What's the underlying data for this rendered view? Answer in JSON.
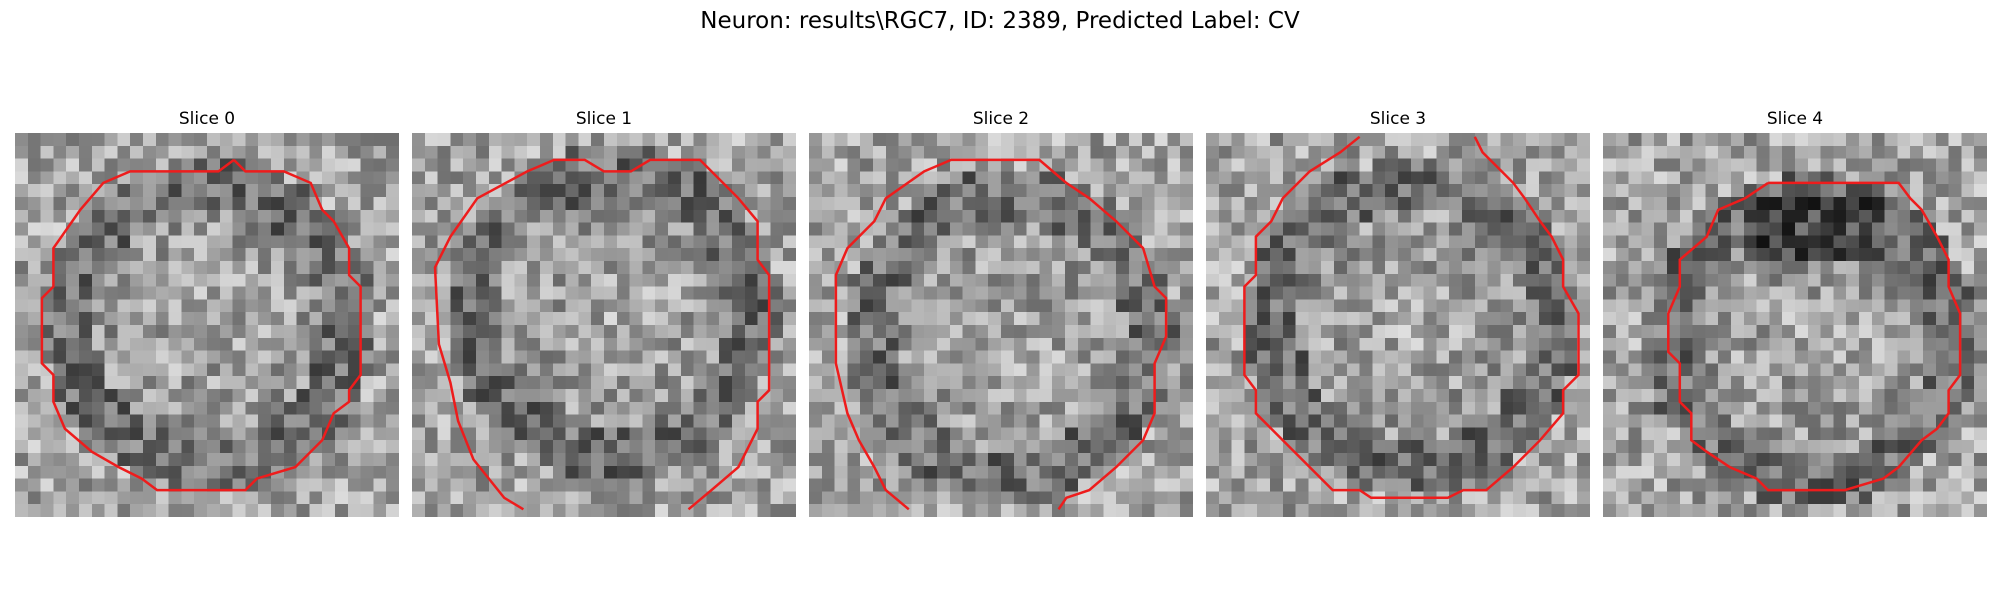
{
  "figure": {
    "title": "Neuron: results\\RGC7, ID: 2389, Predicted Label: CV"
  },
  "slices": [
    {
      "title": "Slice 0",
      "contour": [
        [
          0.57,
          0.07
        ],
        [
          0.6,
          0.1
        ],
        [
          0.7,
          0.1
        ],
        [
          0.77,
          0.13
        ],
        [
          0.8,
          0.2
        ],
        [
          0.83,
          0.23
        ],
        [
          0.87,
          0.3
        ],
        [
          0.87,
          0.37
        ],
        [
          0.9,
          0.4
        ],
        [
          0.9,
          0.63
        ],
        [
          0.87,
          0.67
        ],
        [
          0.87,
          0.7
        ],
        [
          0.83,
          0.73
        ],
        [
          0.8,
          0.8
        ],
        [
          0.73,
          0.87
        ],
        [
          0.63,
          0.9
        ],
        [
          0.6,
          0.93
        ],
        [
          0.37,
          0.93
        ],
        [
          0.33,
          0.9
        ],
        [
          0.27,
          0.87
        ],
        [
          0.2,
          0.83
        ],
        [
          0.13,
          0.77
        ],
        [
          0.1,
          0.7
        ],
        [
          0.1,
          0.63
        ],
        [
          0.07,
          0.6
        ],
        [
          0.07,
          0.43
        ],
        [
          0.1,
          0.4
        ],
        [
          0.1,
          0.3
        ],
        [
          0.17,
          0.2
        ],
        [
          0.23,
          0.13
        ],
        [
          0.3,
          0.1
        ],
        [
          0.53,
          0.1
        ]
      ]
    },
    {
      "title": "Slice 1",
      "contour": [
        [
          0.29,
          0.98
        ],
        [
          0.24,
          0.95
        ],
        [
          0.16,
          0.85
        ],
        [
          0.12,
          0.75
        ],
        [
          0.1,
          0.65
        ],
        [
          0.07,
          0.55
        ],
        [
          0.06,
          0.35
        ],
        [
          0.1,
          0.27
        ],
        [
          0.17,
          0.17
        ],
        [
          0.3,
          0.1
        ],
        [
          0.37,
          0.07
        ],
        [
          0.45,
          0.07
        ],
        [
          0.5,
          0.1
        ],
        [
          0.57,
          0.1
        ],
        [
          0.62,
          0.07
        ],
        [
          0.75,
          0.07
        ],
        [
          0.85,
          0.17
        ],
        [
          0.9,
          0.23
        ],
        [
          0.9,
          0.33
        ],
        [
          0.93,
          0.37
        ],
        [
          0.93,
          0.67
        ],
        [
          0.9,
          0.7
        ],
        [
          0.9,
          0.77
        ],
        [
          0.85,
          0.87
        ],
        [
          0.78,
          0.93
        ],
        [
          0.72,
          0.98
        ]
      ]
    },
    {
      "title": "Slice 2",
      "contour": [
        [
          0.26,
          0.98
        ],
        [
          0.2,
          0.93
        ],
        [
          0.17,
          0.87
        ],
        [
          0.13,
          0.8
        ],
        [
          0.1,
          0.73
        ],
        [
          0.07,
          0.6
        ],
        [
          0.07,
          0.37
        ],
        [
          0.1,
          0.3
        ],
        [
          0.17,
          0.23
        ],
        [
          0.2,
          0.17
        ],
        [
          0.3,
          0.1
        ],
        [
          0.37,
          0.07
        ],
        [
          0.6,
          0.07
        ],
        [
          0.67,
          0.13
        ],
        [
          0.73,
          0.17
        ],
        [
          0.8,
          0.23
        ],
        [
          0.87,
          0.3
        ],
        [
          0.9,
          0.4
        ],
        [
          0.93,
          0.43
        ],
        [
          0.93,
          0.53
        ],
        [
          0.9,
          0.6
        ],
        [
          0.9,
          0.73
        ],
        [
          0.87,
          0.8
        ],
        [
          0.8,
          0.87
        ],
        [
          0.73,
          0.93
        ],
        [
          0.67,
          0.95
        ],
        [
          0.65,
          0.98
        ]
      ]
    },
    {
      "title": "Slice 3",
      "contour": [
        [
          0.4,
          0.01
        ],
        [
          0.35,
          0.05
        ],
        [
          0.27,
          0.1
        ],
        [
          0.2,
          0.17
        ],
        [
          0.17,
          0.23
        ],
        [
          0.13,
          0.27
        ],
        [
          0.13,
          0.37
        ],
        [
          0.1,
          0.4
        ],
        [
          0.1,
          0.63
        ],
        [
          0.13,
          0.67
        ],
        [
          0.13,
          0.73
        ],
        [
          0.17,
          0.77
        ],
        [
          0.23,
          0.83
        ],
        [
          0.3,
          0.9
        ],
        [
          0.33,
          0.93
        ],
        [
          0.4,
          0.93
        ],
        [
          0.43,
          0.95
        ],
        [
          0.63,
          0.95
        ],
        [
          0.67,
          0.93
        ],
        [
          0.73,
          0.93
        ],
        [
          0.8,
          0.87
        ],
        [
          0.87,
          0.8
        ],
        [
          0.93,
          0.73
        ],
        [
          0.93,
          0.67
        ],
        [
          0.97,
          0.63
        ],
        [
          0.97,
          0.47
        ],
        [
          0.93,
          0.4
        ],
        [
          0.93,
          0.33
        ],
        [
          0.9,
          0.27
        ],
        [
          0.87,
          0.23
        ],
        [
          0.83,
          0.17
        ],
        [
          0.8,
          0.13
        ],
        [
          0.77,
          0.1
        ],
        [
          0.72,
          0.05
        ],
        [
          0.7,
          0.01
        ]
      ]
    },
    {
      "title": "Slice 4",
      "contour": [
        [
          0.43,
          0.13
        ],
        [
          0.5,
          0.13
        ],
        [
          0.77,
          0.13
        ],
        [
          0.8,
          0.17
        ],
        [
          0.83,
          0.2
        ],
        [
          0.87,
          0.27
        ],
        [
          0.9,
          0.33
        ],
        [
          0.9,
          0.4
        ],
        [
          0.93,
          0.47
        ],
        [
          0.93,
          0.63
        ],
        [
          0.9,
          0.67
        ],
        [
          0.9,
          0.73
        ],
        [
          0.87,
          0.77
        ],
        [
          0.83,
          0.8
        ],
        [
          0.77,
          0.87
        ],
        [
          0.73,
          0.9
        ],
        [
          0.63,
          0.93
        ],
        [
          0.43,
          0.93
        ],
        [
          0.4,
          0.9
        ],
        [
          0.33,
          0.87
        ],
        [
          0.27,
          0.83
        ],
        [
          0.23,
          0.8
        ],
        [
          0.23,
          0.73
        ],
        [
          0.2,
          0.7
        ],
        [
          0.2,
          0.6
        ],
        [
          0.17,
          0.57
        ],
        [
          0.17,
          0.47
        ],
        [
          0.2,
          0.4
        ],
        [
          0.2,
          0.33
        ],
        [
          0.27,
          0.27
        ],
        [
          0.3,
          0.2
        ],
        [
          0.37,
          0.17
        ]
      ]
    }
  ],
  "style": {
    "contour_color": "#ee1c1c"
  }
}
